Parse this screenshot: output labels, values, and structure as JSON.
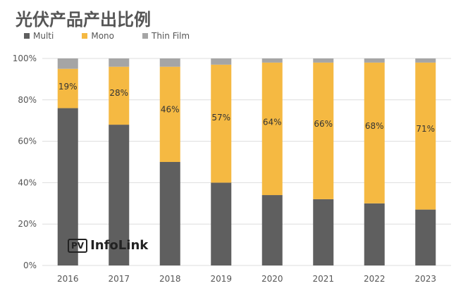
{
  "chart_data": {
    "type": "bar",
    "stacked": true,
    "title": "光伏产品产出比例",
    "categories": [
      "2016",
      "2017",
      "2018",
      "2019",
      "2020",
      "2021",
      "2022",
      "2023"
    ],
    "series": [
      {
        "name": "Multi",
        "color": "#5f5f5f",
        "values": [
          76,
          68,
          50,
          40,
          34,
          32,
          30,
          27
        ]
      },
      {
        "name": "Mono",
        "color": "#f5b942",
        "values": [
          19,
          28,
          46,
          57,
          64,
          66,
          68,
          71
        ]
      },
      {
        "name": "Thin Film",
        "color": "#a5a5a5",
        "values": [
          5,
          4,
          4,
          3,
          2,
          2,
          2,
          2
        ]
      }
    ],
    "data_labels": [
      "19%",
      "28%",
      "46%",
      "57%",
      "64%",
      "66%",
      "68%",
      "71%"
    ],
    "yticks": [
      "0%",
      "20%",
      "40%",
      "60%",
      "80%",
      "100%"
    ],
    "ylim": [
      0,
      100
    ],
    "legend": "top-left",
    "watermark": "PV InfoLink"
  }
}
